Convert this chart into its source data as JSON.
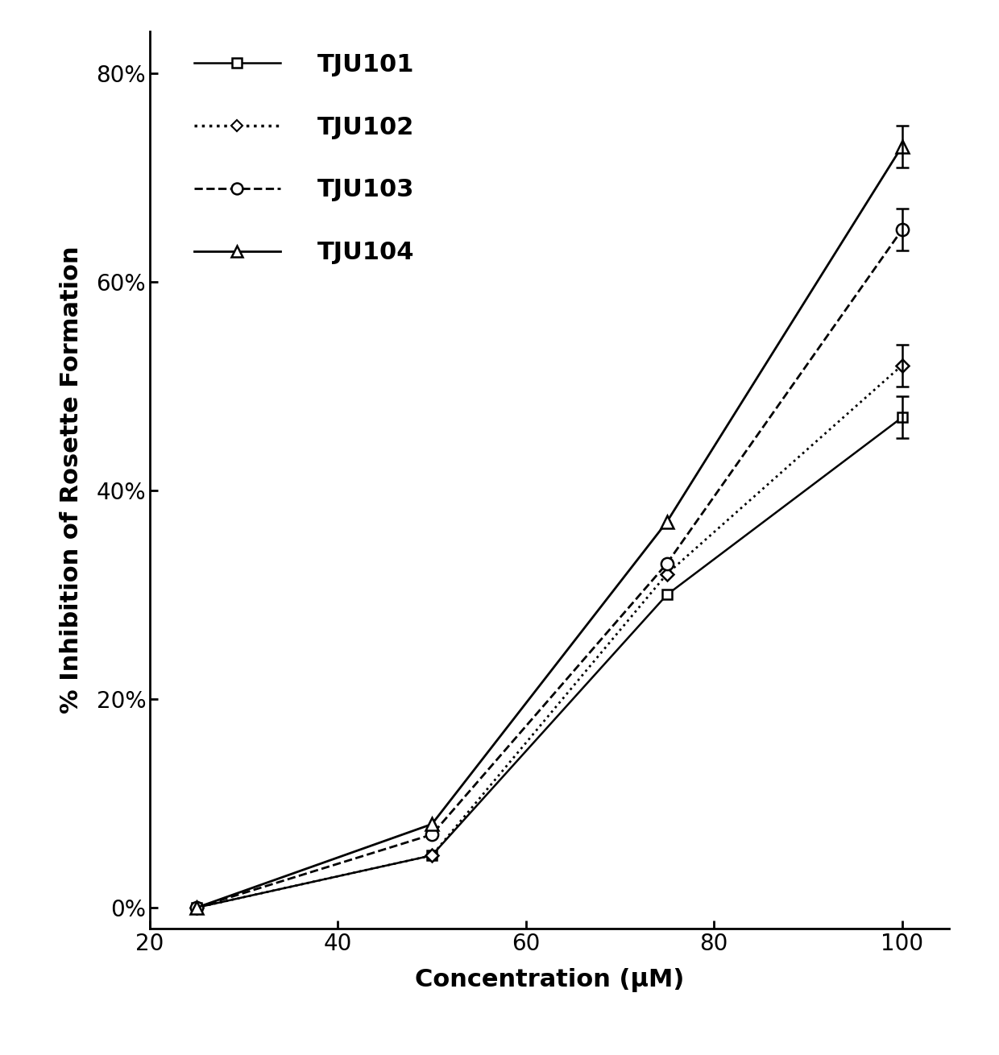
{
  "series": [
    {
      "label": "TJU101",
      "x": [
        25,
        50,
        75,
        100
      ],
      "y": [
        0,
        5,
        30,
        47
      ],
      "yerr": [
        0,
        0,
        0,
        2
      ],
      "linestyle": "solid",
      "marker": "s",
      "markersize": 9,
      "linewidth": 1.8,
      "color": "black",
      "dashes": []
    },
    {
      "label": "TJU102",
      "x": [
        25,
        50,
        75,
        100
      ],
      "y": [
        0,
        5,
        32,
        52
      ],
      "yerr": [
        0,
        0,
        0,
        2
      ],
      "linestyle": "dotted",
      "marker": "D",
      "markersize": 8,
      "linewidth": 2.0,
      "color": "black",
      "dashes": [
        1,
        3
      ]
    },
    {
      "label": "TJU103",
      "x": [
        25,
        50,
        75,
        100
      ],
      "y": [
        0,
        7,
        33,
        65
      ],
      "yerr": [
        0,
        0,
        0,
        2
      ],
      "linestyle": "dashed",
      "marker": "o",
      "markersize": 11,
      "linewidth": 2.0,
      "color": "black",
      "dashes": [
        6,
        3
      ]
    },
    {
      "label": "TJU104",
      "x": [
        25,
        50,
        75,
        100
      ],
      "y": [
        0,
        8,
        37,
        73
      ],
      "yerr": [
        0,
        0,
        0,
        2
      ],
      "linestyle": "solid",
      "marker": "^",
      "markersize": 11,
      "linewidth": 2.0,
      "color": "black",
      "dashes": []
    }
  ],
  "xlim": [
    20,
    105
  ],
  "ylim": [
    -2,
    84
  ],
  "xticks": [
    20,
    40,
    60,
    80,
    100
  ],
  "yticks": [
    0,
    20,
    40,
    60,
    80
  ],
  "ytick_labels": [
    "0%",
    "20%",
    "40%",
    "60%",
    "80%"
  ],
  "xlabel": "Concentration (μM)",
  "ylabel": "% Inhibition of Rosette Formation",
  "background_color": "white",
  "axis_fontsize": 22,
  "tick_fontsize": 20,
  "legend_fontsize": 22
}
